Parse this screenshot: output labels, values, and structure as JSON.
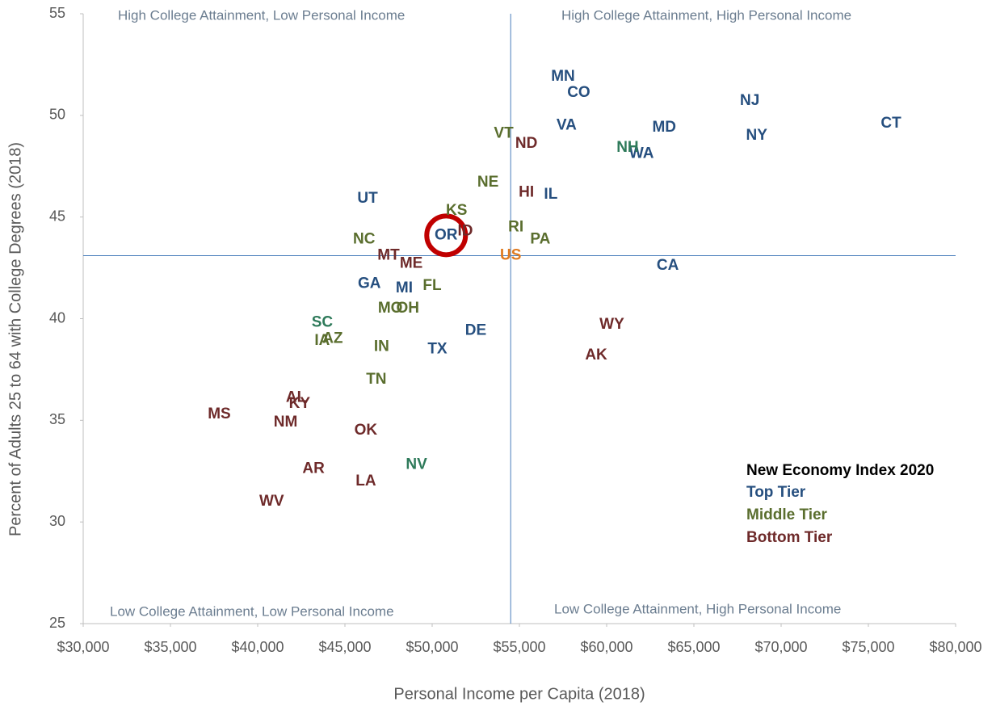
{
  "chart_data": {
    "type": "scatter",
    "x_label": "Personal Income per Capita (2018)",
    "y_label": "Percent of Adults 25 to 64 with College Degrees (2018)",
    "xlim": [
      30000,
      80000
    ],
    "ylim": [
      25,
      55
    ],
    "xticks": [
      {
        "value": 30000,
        "label": "$30,000"
      },
      {
        "value": 35000,
        "label": "$35,000"
      },
      {
        "value": 40000,
        "label": "$40,000"
      },
      {
        "value": 45000,
        "label": "$45,000"
      },
      {
        "value": 50000,
        "label": "$50,000"
      },
      {
        "value": 55000,
        "label": "$55,000"
      },
      {
        "value": 60000,
        "label": "$60,000"
      },
      {
        "value": 65000,
        "label": "$65,000"
      },
      {
        "value": 70000,
        "label": "$70,000"
      },
      {
        "value": 75000,
        "label": "$75,000"
      },
      {
        "value": 80000,
        "label": "$80,000"
      }
    ],
    "yticks": [
      25,
      30,
      35,
      40,
      45,
      50,
      55
    ],
    "quadrant_labels": {
      "top_left": "High College Attainment, Low Personal Income",
      "top_right": "High College Attainment, High Personal Income",
      "bottom_left": "Low College Attainment, Low Personal Income",
      "bottom_right": "Low College Attainment, High Personal Income"
    },
    "legend_title": "New Economy Index 2020",
    "highlight": "OR",
    "highlight_color": "#c00000",
    "series": [
      {
        "name": "Top Tier",
        "color": "#264f7f",
        "labels": [
          "MN",
          "CO",
          "VA",
          "MD",
          "NJ",
          "NY",
          "CT",
          "WA",
          "IL",
          "UT",
          "OR",
          "CA",
          "GA",
          "MI",
          "TX",
          "DE"
        ],
        "x": [
          57500,
          58400,
          57700,
          63300,
          68200,
          68600,
          76300,
          62000,
          56800,
          46300,
          50800,
          63500,
          46400,
          48400,
          50300,
          52500
        ],
        "y": [
          51.9,
          51.1,
          49.5,
          49.4,
          50.7,
          49.0,
          49.6,
          48.1,
          46.1,
          45.9,
          44.1,
          42.6,
          41.7,
          41.5,
          38.5,
          39.4
        ]
      },
      {
        "name": "Middle Tier",
        "color": "#5a6e2e",
        "labels": [
          "VT",
          "NE",
          "KS",
          "RI",
          "PA",
          "NC",
          "FL",
          "MO",
          "OH",
          "IA",
          "AZ",
          "IN",
          "TN",
          "NH",
          "SC",
          "NV"
        ],
        "x": [
          54100,
          53200,
          51400,
          54800,
          56200,
          46100,
          50000,
          47600,
          48600,
          43700,
          44300,
          47100,
          46800,
          61200,
          43700,
          49100
        ],
        "y": [
          49.1,
          46.7,
          45.3,
          44.5,
          43.9,
          43.9,
          41.6,
          40.5,
          40.5,
          38.9,
          39.0,
          38.6,
          37.0,
          48.4,
          39.8,
          32.8
        ],
        "point_colors": [
          null,
          null,
          null,
          null,
          null,
          null,
          null,
          null,
          null,
          null,
          null,
          null,
          null,
          "#2e7a5a",
          "#2e7a5a",
          "#2e7a5a"
        ]
      },
      {
        "name": "Bottom Tier",
        "color": "#6e2a2a",
        "labels": [
          "ND",
          "HI",
          "ID",
          "MT",
          "ME",
          "WY",
          "AK",
          "AL",
          "KY",
          "MS",
          "NM",
          "OK",
          "AR",
          "LA",
          "WV"
        ],
        "x": [
          55400,
          55400,
          51900,
          47500,
          48800,
          60300,
          59400,
          42200,
          42400,
          37800,
          41600,
          46200,
          43200,
          46200,
          40800
        ],
        "y": [
          48.6,
          46.2,
          44.3,
          43.1,
          42.7,
          39.7,
          38.2,
          36.1,
          35.8,
          35.3,
          34.9,
          34.5,
          32.6,
          32.0,
          31.0
        ]
      }
    ],
    "us_point": {
      "label": "US",
      "x": 54500,
      "y": 43.1,
      "color": "#e07b20"
    }
  }
}
